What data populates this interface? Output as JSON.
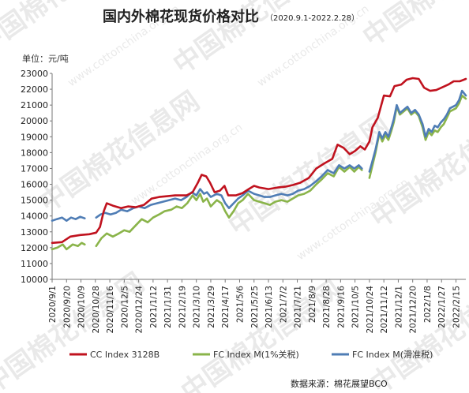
{
  "watermark": {
    "text": "中国棉花信息网",
    "url": "www.cottonchina.org.cn"
  },
  "chart_data": {
    "type": "line",
    "title": "国内外棉花现货价格对比",
    "subtitle": "（2020.9.1-2022.2.28）",
    "unit_label": "单位：元/吨",
    "source": "数据来源：棉花展望BCO",
    "ylim": [
      10000,
      23000
    ],
    "yticks": [
      10000,
      11000,
      12000,
      13000,
      14000,
      15000,
      16000,
      17000,
      18000,
      19000,
      20000,
      21000,
      22000,
      23000
    ],
    "xlim": [
      "2020-09-01",
      "2022-02-28"
    ],
    "xticks": [
      "2020/9/1",
      "2020/9/20",
      "2020/10/9",
      "2020/10/28",
      "2020/11/16",
      "2020/12/5",
      "2020/12/24",
      "2021/1/12",
      "2021/1/31",
      "2021/2/19",
      "2021/3/10",
      "2021/3/29",
      "2021/4/17",
      "2021/5/6",
      "2021/5/25",
      "2021/6/13",
      "2021/7/2",
      "2021/7/21",
      "2021/8/9",
      "2021/8/28",
      "2021/9/16",
      "2021/10/5",
      "2021/10/24",
      "2021/11/12",
      "2021/12/1",
      "2021/12/20",
      "2022/1/8",
      "2022/1/27",
      "2022/2/15"
    ],
    "grid": false,
    "legend_position": "bottom",
    "series": [
      {
        "name": "CC Index 3128B",
        "color": "#c0121e",
        "points": [
          [
            "2020-09-01",
            12300
          ],
          [
            "2020-09-14",
            12350
          ],
          [
            "2020-09-25",
            12700
          ],
          [
            "2020-10-08",
            12800
          ],
          [
            "2020-10-20",
            12850
          ],
          [
            "2020-10-29",
            12950
          ],
          [
            "2020-11-03",
            13300
          ],
          [
            "2020-11-08",
            14300
          ],
          [
            "2020-11-12",
            14800
          ],
          [
            "2020-11-20",
            14650
          ],
          [
            "2020-12-01",
            14500
          ],
          [
            "2020-12-10",
            14600
          ],
          [
            "2020-12-20",
            14550
          ],
          [
            "2020-12-31",
            14700
          ],
          [
            "2021-01-10",
            15100
          ],
          [
            "2021-01-20",
            15200
          ],
          [
            "2021-01-31",
            15250
          ],
          [
            "2021-02-10",
            15300
          ],
          [
            "2021-02-25",
            15300
          ],
          [
            "2021-03-05",
            15500
          ],
          [
            "2021-03-12",
            16100
          ],
          [
            "2021-03-17",
            16600
          ],
          [
            "2021-03-23",
            16500
          ],
          [
            "2021-03-28",
            16100
          ],
          [
            "2021-04-03",
            15500
          ],
          [
            "2021-04-10",
            15600
          ],
          [
            "2021-04-16",
            15900
          ],
          [
            "2021-04-21",
            15300
          ],
          [
            "2021-05-01",
            15300
          ],
          [
            "2021-05-10",
            15450
          ],
          [
            "2021-05-18",
            15700
          ],
          [
            "2021-05-25",
            15900
          ],
          [
            "2021-06-01",
            15800
          ],
          [
            "2021-06-13",
            15700
          ],
          [
            "2021-06-25",
            15800
          ],
          [
            "2021-07-05",
            15850
          ],
          [
            "2021-07-15",
            15950
          ],
          [
            "2021-07-25",
            16100
          ],
          [
            "2021-08-05",
            16400
          ],
          [
            "2021-08-15",
            17000
          ],
          [
            "2021-08-25",
            17300
          ],
          [
            "2021-09-05",
            17600
          ],
          [
            "2021-09-12",
            18500
          ],
          [
            "2021-09-20",
            18300
          ],
          [
            "2021-09-28",
            17900
          ],
          [
            "2021-10-05",
            18100
          ],
          [
            "2021-10-12",
            18400
          ],
          [
            "2021-10-18",
            18200
          ],
          [
            "2021-10-24",
            18700
          ],
          [
            "2021-10-28",
            19600
          ],
          [
            "2021-11-04",
            20200
          ],
          [
            "2021-11-12",
            21600
          ],
          [
            "2021-11-20",
            21550
          ],
          [
            "2021-11-26",
            22200
          ],
          [
            "2021-12-05",
            22300
          ],
          [
            "2021-12-12",
            22600
          ],
          [
            "2021-12-20",
            22700
          ],
          [
            "2021-12-28",
            22650
          ],
          [
            "2022-01-04",
            22100
          ],
          [
            "2022-01-12",
            21900
          ],
          [
            "2022-01-20",
            21950
          ],
          [
            "2022-01-27",
            22100
          ],
          [
            "2022-02-05",
            22300
          ],
          [
            "2022-02-12",
            22500
          ],
          [
            "2022-02-20",
            22500
          ],
          [
            "2022-02-28",
            22650
          ]
        ]
      },
      {
        "name": "FC Index M(1%关税)",
        "color": "#8ab44a",
        "points": [
          [
            "2020-09-01",
            11900
          ],
          [
            "2020-09-08",
            12000
          ],
          [
            "2020-09-15",
            12200
          ],
          [
            "2020-09-20",
            11900
          ],
          [
            "2020-09-28",
            12200
          ],
          [
            "2020-10-05",
            12100
          ],
          [
            "2020-10-10",
            12300
          ],
          [
            "2020-10-14",
            12200
          ],
          null,
          [
            "2020-10-29",
            12100
          ],
          [
            "2020-11-05",
            12600
          ],
          [
            "2020-11-12",
            12900
          ],
          [
            "2020-11-20",
            12700
          ],
          [
            "2020-11-28",
            12900
          ],
          [
            "2020-12-05",
            13100
          ],
          [
            "2020-12-12",
            13000
          ],
          [
            "2020-12-20",
            13400
          ],
          [
            "2020-12-28",
            13800
          ],
          [
            "2021-01-05",
            13600
          ],
          [
            "2021-01-12",
            13900
          ],
          [
            "2021-01-20",
            14100
          ],
          [
            "2021-01-27",
            14300
          ],
          [
            "2021-02-05",
            14400
          ],
          [
            "2021-02-12",
            14600
          ],
          [
            "2021-02-19",
            14500
          ],
          [
            "2021-02-26",
            14800
          ],
          [
            "2021-03-05",
            15300
          ],
          [
            "2021-03-10",
            15000
          ],
          [
            "2021-03-15",
            15400
          ],
          [
            "2021-03-19",
            14900
          ],
          [
            "2021-03-24",
            15100
          ],
          [
            "2021-03-29",
            14600
          ],
          [
            "2021-04-06",
            15000
          ],
          [
            "2021-04-12",
            14800
          ],
          [
            "2021-04-17",
            14300
          ],
          [
            "2021-04-22",
            13900
          ],
          [
            "2021-04-28",
            14300
          ],
          [
            "2021-05-04",
            14800
          ],
          [
            "2021-05-10",
            15000
          ],
          [
            "2021-05-17",
            15400
          ],
          [
            "2021-05-25",
            15000
          ],
          [
            "2021-06-01",
            14900
          ],
          [
            "2021-06-08",
            14800
          ],
          [
            "2021-06-15",
            14700
          ],
          [
            "2021-06-22",
            14900
          ],
          [
            "2021-06-30",
            15000
          ],
          [
            "2021-07-08",
            14900
          ],
          [
            "2021-07-15",
            15100
          ],
          [
            "2021-07-22",
            15300
          ],
          [
            "2021-07-30",
            15400
          ],
          [
            "2021-08-07",
            15600
          ],
          [
            "2021-08-15",
            16000
          ],
          [
            "2021-08-22",
            16300
          ],
          [
            "2021-08-30",
            16700
          ],
          [
            "2021-09-07",
            16500
          ],
          [
            "2021-09-14",
            17100
          ],
          [
            "2021-09-21",
            16800
          ],
          [
            "2021-09-28",
            17100
          ],
          [
            "2021-10-04",
            16800
          ],
          [
            "2021-10-10",
            17100
          ],
          [
            "2021-10-14",
            16900
          ],
          null,
          [
            "2021-10-24",
            16400
          ],
          [
            "2021-10-27",
            17000
          ],
          [
            "2021-11-01",
            18000
          ],
          [
            "2021-11-06",
            19200
          ],
          [
            "2021-11-10",
            18700
          ],
          [
            "2021-11-14",
            19100
          ],
          [
            "2021-11-18",
            18800
          ],
          [
            "2021-11-22",
            19400
          ],
          [
            "2021-11-25",
            19900
          ],
          [
            "2021-11-29",
            20900
          ],
          [
            "2021-12-03",
            20400
          ],
          [
            "2021-12-08",
            20600
          ],
          [
            "2021-12-13",
            20800
          ],
          [
            "2021-12-18",
            20400
          ],
          [
            "2021-12-23",
            20600
          ],
          [
            "2021-12-28",
            20300
          ],
          [
            "2022-01-02",
            19600
          ],
          [
            "2022-01-06",
            18800
          ],
          [
            "2022-01-10",
            19300
          ],
          [
            "2022-01-14",
            19100
          ],
          [
            "2022-01-18",
            19400
          ],
          [
            "2022-01-22",
            19300
          ],
          [
            "2022-01-26",
            19600
          ],
          [
            "2022-01-30",
            19800
          ],
          [
            "2022-02-03",
            20200
          ],
          [
            "2022-02-07",
            20600
          ],
          [
            "2022-02-11",
            20700
          ],
          [
            "2022-02-15",
            20800
          ],
          [
            "2022-02-19",
            21100
          ],
          [
            "2022-02-23",
            21600
          ],
          [
            "2022-02-28",
            21400
          ]
        ]
      },
      {
        "name": "FC Index M(滑准税)",
        "color": "#4f7db5",
        "points": [
          [
            "2020-09-01",
            13700
          ],
          [
            "2020-09-07",
            13800
          ],
          [
            "2020-09-14",
            13900
          ],
          [
            "2020-09-20",
            13700
          ],
          [
            "2020-09-26",
            13900
          ],
          [
            "2020-10-02",
            13800
          ],
          [
            "2020-10-08",
            13950
          ],
          [
            "2020-10-14",
            13850
          ],
          null,
          [
            "2020-10-29",
            13900
          ],
          [
            "2020-11-04",
            14100
          ],
          [
            "2020-11-10",
            14200
          ],
          [
            "2020-11-17",
            14100
          ],
          [
            "2020-11-24",
            14200
          ],
          [
            "2020-12-01",
            14400
          ],
          [
            "2020-12-09",
            14300
          ],
          [
            "2020-12-17",
            14500
          ],
          [
            "2020-12-24",
            14600
          ],
          [
            "2021-01-01",
            14500
          ],
          [
            "2021-01-09",
            14700
          ],
          [
            "2021-01-17",
            14800
          ],
          [
            "2021-01-25",
            14900
          ],
          [
            "2021-02-02",
            15000
          ],
          [
            "2021-02-10",
            15100
          ],
          [
            "2021-02-18",
            15000
          ],
          [
            "2021-02-25",
            15200
          ],
          [
            "2021-03-04",
            15500
          ],
          [
            "2021-03-10",
            15300
          ],
          [
            "2021-03-15",
            15700
          ],
          [
            "2021-03-20",
            15400
          ],
          [
            "2021-03-24",
            15500
          ],
          [
            "2021-03-29",
            15200
          ],
          [
            "2021-04-06",
            15400
          ],
          [
            "2021-04-12",
            15300
          ],
          [
            "2021-04-17",
            14800
          ],
          [
            "2021-04-22",
            14500
          ],
          [
            "2021-04-28",
            14800
          ],
          [
            "2021-05-04",
            15100
          ],
          [
            "2021-05-10",
            15300
          ],
          [
            "2021-05-17",
            15600
          ],
          [
            "2021-05-25",
            15400
          ],
          [
            "2021-06-01",
            15300
          ],
          [
            "2021-06-08",
            15200
          ],
          [
            "2021-06-15",
            15200
          ],
          [
            "2021-06-22",
            15300
          ],
          [
            "2021-06-30",
            15400
          ],
          [
            "2021-07-08",
            15300
          ],
          [
            "2021-07-15",
            15400
          ],
          [
            "2021-07-22",
            15600
          ],
          [
            "2021-07-30",
            15700
          ],
          [
            "2021-08-07",
            15900
          ],
          [
            "2021-08-15",
            16200
          ],
          [
            "2021-08-22",
            16500
          ],
          [
            "2021-08-30",
            16900
          ],
          [
            "2021-09-07",
            16700
          ],
          [
            "2021-09-14",
            17200
          ],
          [
            "2021-09-21",
            17000
          ],
          [
            "2021-09-28",
            17200
          ],
          [
            "2021-10-04",
            17000
          ],
          [
            "2021-10-10",
            17200
          ],
          [
            "2021-10-14",
            17000
          ],
          null,
          [
            "2021-10-24",
            16800
          ],
          [
            "2021-10-27",
            17300
          ],
          [
            "2021-11-01",
            18200
          ],
          [
            "2021-11-06",
            19300
          ],
          [
            "2021-11-10",
            18900
          ],
          [
            "2021-11-14",
            19300
          ],
          [
            "2021-11-18",
            19000
          ],
          [
            "2021-11-22",
            19600
          ],
          [
            "2021-11-25",
            20100
          ],
          [
            "2021-11-29",
            21000
          ],
          [
            "2021-12-03",
            20500
          ],
          [
            "2021-12-08",
            20700
          ],
          [
            "2021-12-13",
            20900
          ],
          [
            "2021-12-18",
            20500
          ],
          [
            "2021-12-23",
            20700
          ],
          [
            "2021-12-28",
            20400
          ],
          [
            "2022-01-02",
            19800
          ],
          [
            "2022-01-06",
            19000
          ],
          [
            "2022-01-10",
            19500
          ],
          [
            "2022-01-14",
            19300
          ],
          [
            "2022-01-18",
            19700
          ],
          [
            "2022-01-22",
            19600
          ],
          [
            "2022-01-26",
            19900
          ],
          [
            "2022-01-30",
            20100
          ],
          [
            "2022-02-03",
            20400
          ],
          [
            "2022-02-07",
            20800
          ],
          [
            "2022-02-11",
            20900
          ],
          [
            "2022-02-15",
            21000
          ],
          [
            "2022-02-19",
            21300
          ],
          [
            "2022-02-23",
            21900
          ],
          [
            "2022-02-28",
            21600
          ]
        ]
      }
    ]
  }
}
